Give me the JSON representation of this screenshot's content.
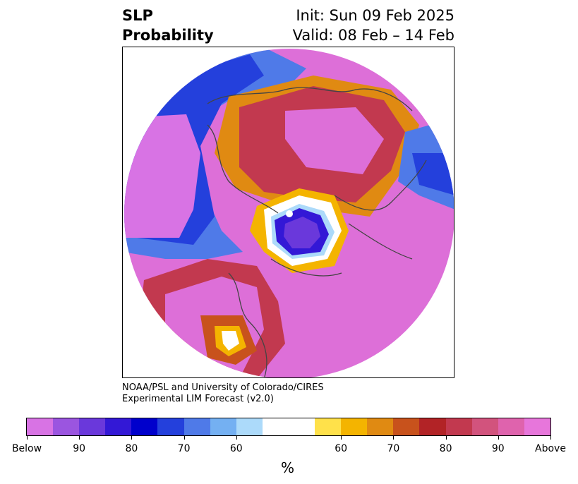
{
  "header": {
    "title_line1": "SLP",
    "title_line2": "Probability",
    "init": "Init: Sun 09 Feb 2025",
    "valid": "Valid: 08 Feb – 14 Feb"
  },
  "credit": {
    "line1": "NOAA/PSL and University of Colorado/CIRES",
    "line2": "Experimental LIM Forecast (v2.0)"
  },
  "colorbar": {
    "unit": "%",
    "colors": [
      "#d873e4",
      "#9b55e0",
      "#6a38db",
      "#3318d6",
      "#0000cc",
      "#2440dc",
      "#4f7ae8",
      "#74b0f2",
      "#acdafa",
      "#ffffff",
      "#ffffff",
      "#ffe14a",
      "#f4b400",
      "#e08a12",
      "#c8521c",
      "#b22326",
      "#c2394f",
      "#d2537d",
      "#df63ad",
      "#e776db"
    ],
    "ticks": [
      "Below",
      "90",
      "80",
      "70",
      "60",
      "60",
      "70",
      "80",
      "90",
      "Above"
    ]
  },
  "map": {
    "colors": {
      "ocean_magenta": "#dd6fd8",
      "deep_red": "#c8394f",
      "strong_blue": "#1a1acd",
      "coast": "#444444"
    }
  }
}
